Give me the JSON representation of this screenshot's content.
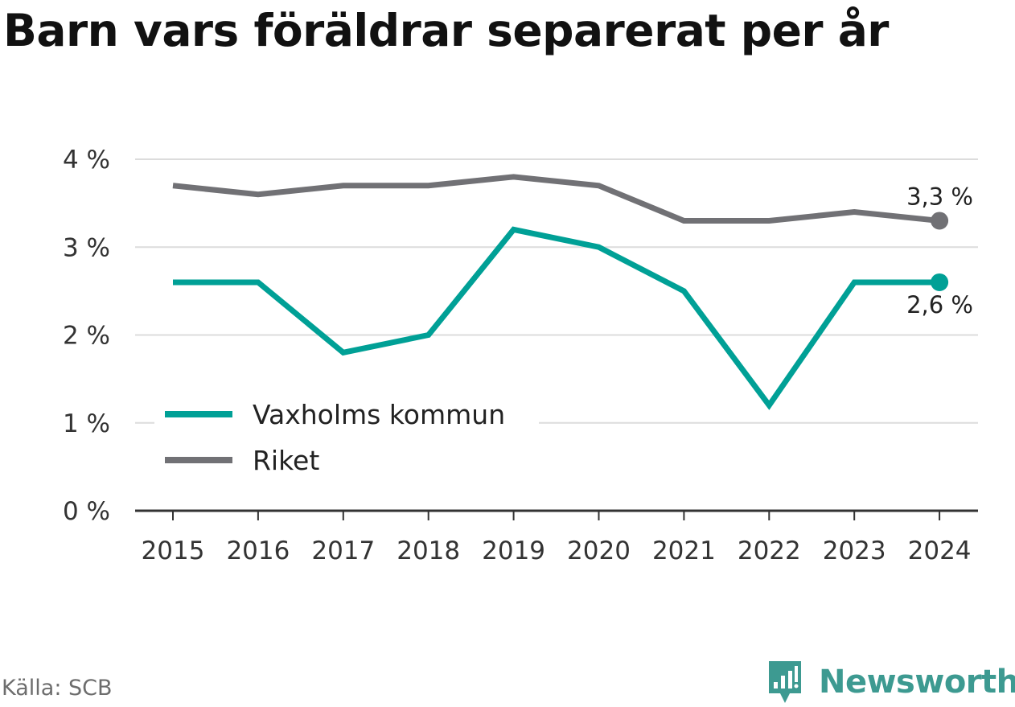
{
  "title": "Barn vars föräldrar separerat per år",
  "source": "Källa: SCB",
  "brand": "Newsworthy",
  "chart_data": {
    "type": "line",
    "title": "Barn vars föräldrar separerat per år",
    "x": [
      "2015",
      "2016",
      "2017",
      "2018",
      "2019",
      "2020",
      "2021",
      "2022",
      "2023",
      "2024"
    ],
    "series": [
      {
        "name": "Vaxholms kommun",
        "color": "#00a096",
        "values": [
          2.6,
          2.6,
          1.8,
          2.0,
          3.2,
          3.0,
          2.5,
          1.2,
          2.6,
          2.6
        ],
        "end_label": "2,6 %"
      },
      {
        "name": "Riket",
        "color": "#717175",
        "values": [
          3.7,
          3.6,
          3.7,
          3.7,
          3.8,
          3.7,
          3.3,
          3.3,
          3.4,
          3.3
        ],
        "end_label": "3,3 %"
      }
    ],
    "y_ticks": [
      0,
      1,
      2,
      3,
      4
    ],
    "y_tick_labels": [
      "0 %",
      "1 %",
      "2 %",
      "3 %",
      "4 %"
    ],
    "ylim": [
      0,
      4
    ],
    "grid": true,
    "legend_position": "bottom-left",
    "xlabel": "",
    "ylabel": ""
  }
}
